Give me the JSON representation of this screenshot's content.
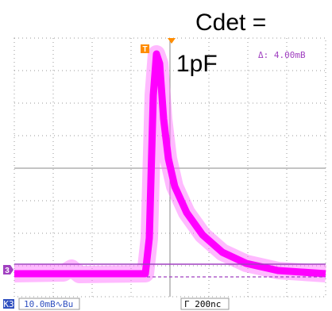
{
  "annotation": {
    "line1": "Cdet =",
    "line2": "1pF"
  },
  "readouts": {
    "delta": "Δ: 4.00mВ"
  },
  "markers": {
    "trigger": "T",
    "channel": "3"
  },
  "status": {
    "channel": "К3",
    "scale": "10.0mВ∿Вu",
    "timebase": "Γ 200nс"
  }
}
